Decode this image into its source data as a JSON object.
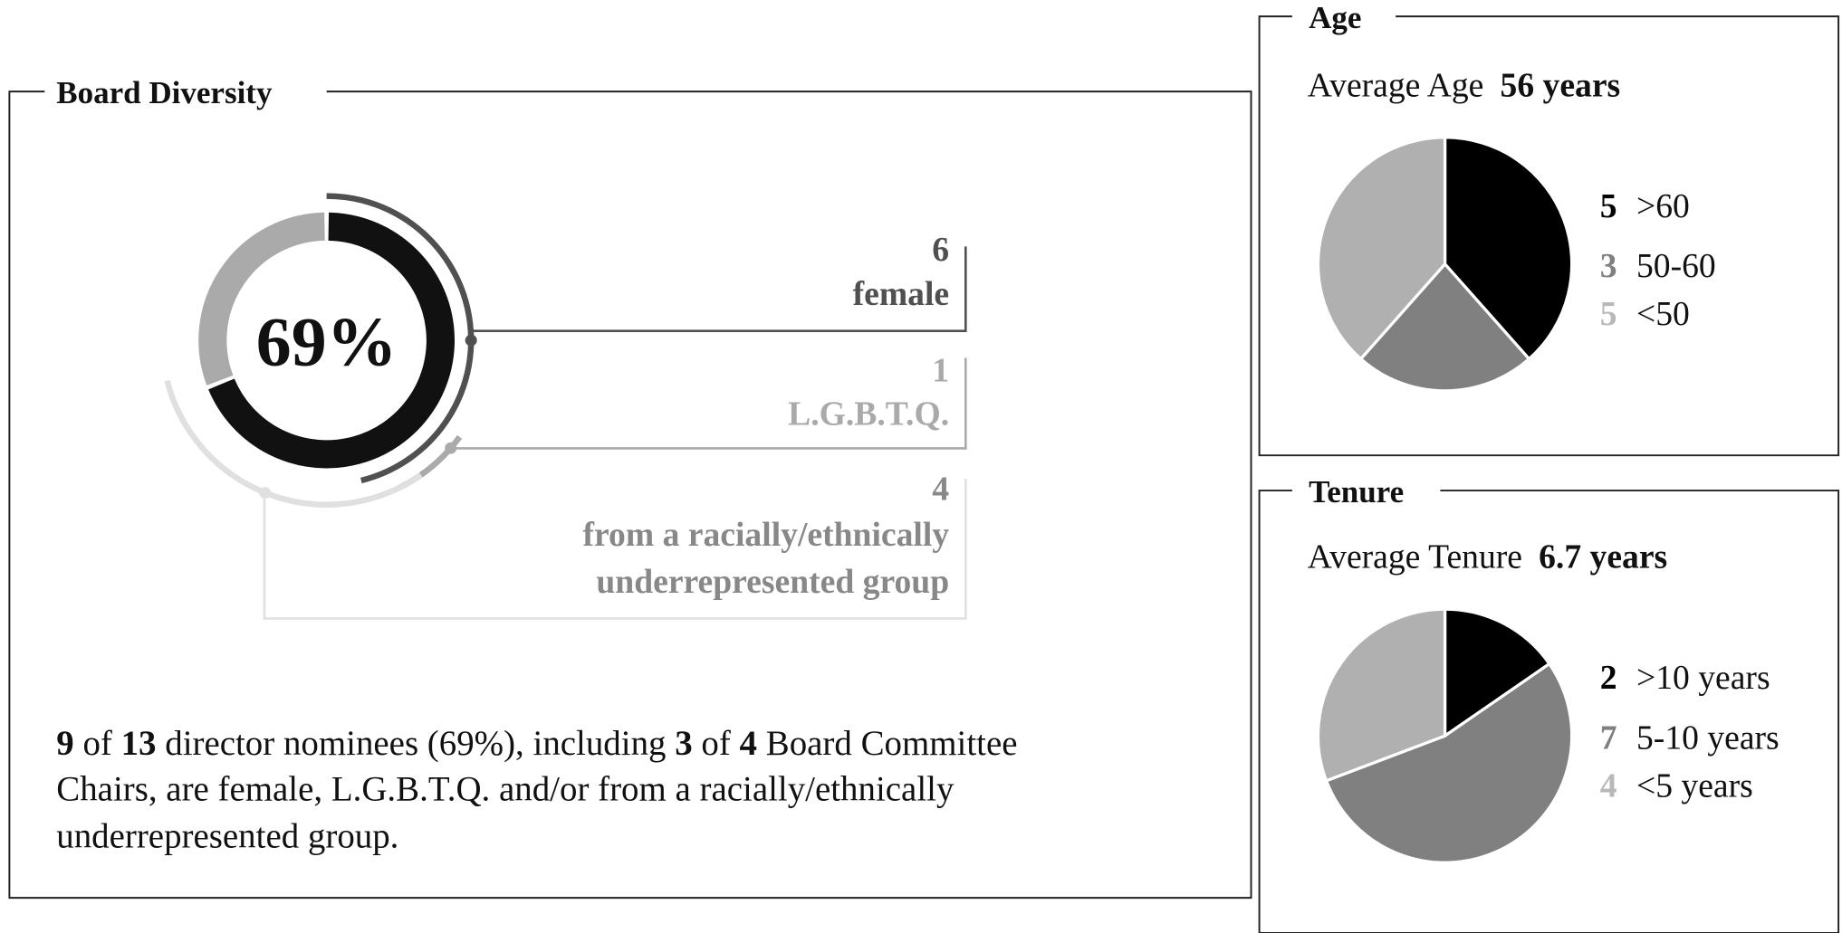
{
  "chart_data": [
    {
      "type": "donut",
      "title": "Board Diversity",
      "values": [
        69
      ],
      "value_labels": [
        "69%"
      ],
      "color": "#111111",
      "rest_color": "#aaaaaa",
      "total": 13,
      "groups": [
        {
          "value": 6,
          "label": [
            "female"
          ],
          "color": "#505050"
        },
        {
          "value": 1,
          "label": [
            "L.G.B.T.Q."
          ],
          "color": "#aaaaaa"
        },
        {
          "value": 4,
          "label": [
            "from a racially/ethnically",
            "underrepresented group"
          ],
          "color": "#e0e0e0",
          "text_color": "#888888"
        }
      ]
    },
    {
      "type": "pie",
      "title": "Age",
      "subtitle": "Average Age",
      "highlight": "56 years",
      "categories": [
        ">60",
        "50-60",
        "<50"
      ],
      "values": [
        5,
        3,
        5
      ],
      "colors": [
        "#000000",
        "#808080",
        "#b0b0b0"
      ],
      "label_colors": [
        "#000000",
        "#808080",
        "#b8b8b8"
      ]
    },
    {
      "type": "pie",
      "title": "Tenure",
      "subtitle": "Average Tenure",
      "highlight": "6.7 years",
      "categories": [
        ">10 years",
        "5-10 years",
        "<5 years"
      ],
      "values": [
        2,
        7,
        4
      ],
      "colors": [
        "#000000",
        "#808080",
        "#b0b0b0"
      ],
      "label_colors": [
        "#000000",
        "#808080",
        "#b8b8b8"
      ]
    }
  ],
  "summary": [
    [
      {
        "text": "9",
        "bold": true
      },
      {
        "text": " of "
      },
      {
        "text": "13",
        "bold": true
      },
      {
        "text": " director nominees (69%), including "
      },
      {
        "text": "3",
        "bold": true
      },
      {
        "text": " of "
      },
      {
        "text": "4",
        "bold": true
      },
      {
        "text": " Board Committee"
      }
    ],
    [
      {
        "text": "Chairs, are female, L.G.B.T.Q. and/or from a racially/ethnically"
      }
    ],
    [
      {
        "text": "underrepresented group."
      }
    ]
  ]
}
